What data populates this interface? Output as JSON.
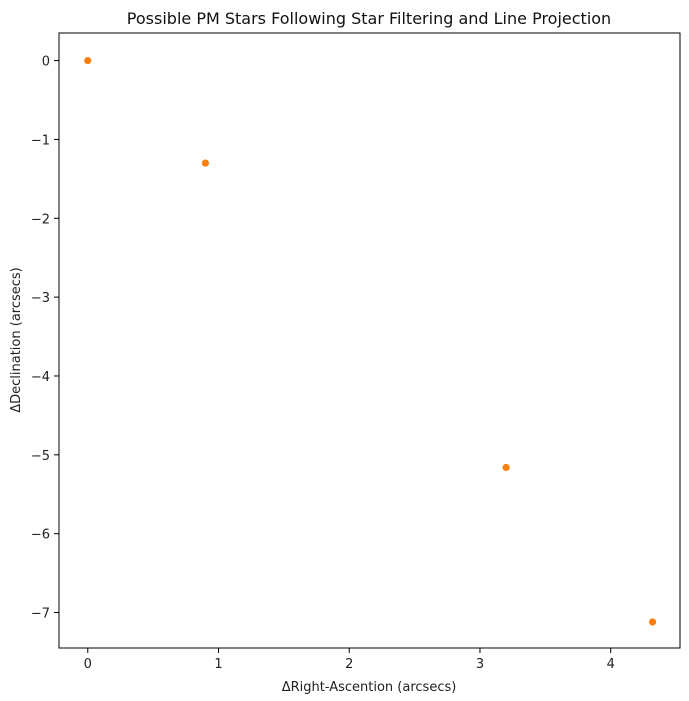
{
  "chart_data": {
    "type": "scatter",
    "title": "Possible PM Stars Following Star Filtering and Line Projection",
    "xlabel": "ΔRight-Ascention (arcsecs)",
    "ylabel": "ΔDeclination (arcsecs)",
    "xlim": [
      -0.22,
      4.53
    ],
    "ylim": [
      -7.45,
      0.35
    ],
    "xticks": [
      0,
      1,
      2,
      3,
      4
    ],
    "yticks": [
      0,
      -1,
      -2,
      -3,
      -4,
      -5,
      -6,
      -7
    ],
    "grid": false,
    "point_color": "#ff7f0e",
    "series": [
      {
        "x": [
          0.0,
          0.9,
          3.2,
          4.32
        ],
        "y": [
          0.0,
          -1.3,
          -5.16,
          -7.12
        ]
      }
    ]
  }
}
